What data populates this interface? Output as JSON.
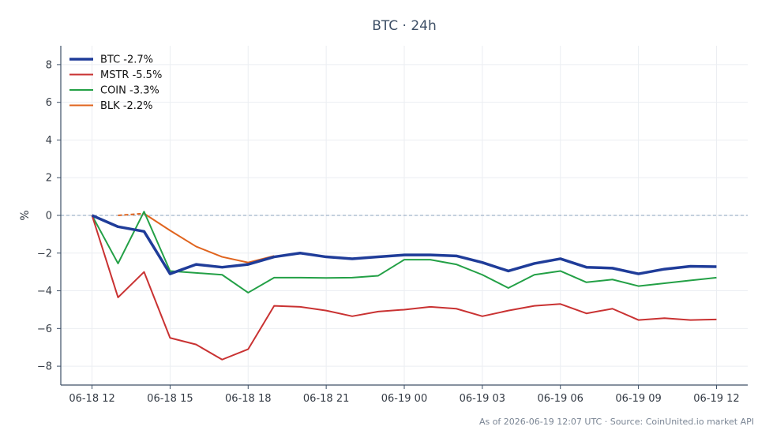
{
  "chart_data": {
    "type": "line",
    "title": "BTC · 24h",
    "ylabel": "%",
    "xlabel": "",
    "footer": "As of 2026-06-19 12:07 UTC · Source: CoinUnited.io market API",
    "ylim": [
      -9,
      9
    ],
    "yticks": [
      -8,
      -6,
      -4,
      -2,
      0,
      2,
      4,
      6,
      8
    ],
    "ytick_labels": [
      "−8",
      "−6",
      "−4",
      "−2",
      "0",
      "2",
      "4",
      "6",
      "8"
    ],
    "xlim": [
      -1.2,
      25.2
    ],
    "xticks": [
      0,
      3,
      6,
      9,
      12,
      15,
      18,
      21,
      24
    ],
    "xtick_labels": [
      "06-18 12",
      "06-18 15",
      "06-18 18",
      "06-18 21",
      "06-19 00",
      "06-19 03",
      "06-19 06",
      "06-19 09",
      "06-19 12"
    ],
    "grid": true,
    "legend_position": "top-left",
    "reference_line": {
      "y": 0,
      "style": "dashed",
      "color": "#8aa0bd"
    },
    "series": [
      {
        "name": "BTC -2.7%",
        "color": "#1f3c99",
        "width": 3.5,
        "x": [
          0,
          1,
          2,
          3,
          4,
          5,
          6,
          7,
          8,
          9,
          10,
          11,
          12,
          13,
          14,
          15,
          16,
          17,
          18,
          19,
          20,
          21,
          22,
          23,
          24
        ],
        "values": [
          0.0,
          -0.6,
          -0.85,
          -3.1,
          -2.6,
          -2.75,
          -2.6,
          -2.2,
          -2.0,
          -2.2,
          -2.3,
          -2.2,
          -2.1,
          -2.1,
          -2.15,
          -2.5,
          -2.95,
          -2.55,
          -2.3,
          -2.75,
          -2.8,
          -3.1,
          -2.85,
          -2.7,
          -2.72
        ]
      },
      {
        "name": "MSTR -5.5%",
        "color": "#c93232",
        "width": 2,
        "x": [
          0,
          1,
          2,
          3,
          4,
          5,
          6,
          7,
          8,
          9,
          10,
          11,
          12,
          13,
          14,
          15,
          16,
          17,
          18,
          19,
          20,
          21,
          22,
          23,
          24
        ],
        "values": [
          0.0,
          -4.35,
          -3.0,
          -6.5,
          -6.85,
          -7.65,
          -7.1,
          -4.8,
          -4.85,
          -5.05,
          -5.35,
          -5.1,
          -5.0,
          -4.85,
          -4.95,
          -5.35,
          -5.05,
          -4.8,
          -4.7,
          -5.2,
          -4.95,
          -5.55,
          -5.45,
          -5.55,
          -5.52
        ]
      },
      {
        "name": "COIN -3.3%",
        "color": "#23a046",
        "width": 2,
        "x": [
          0,
          1,
          2,
          3,
          4,
          5,
          6,
          7,
          8,
          9,
          10,
          11,
          12,
          13,
          14,
          15,
          16,
          17,
          18,
          19,
          20,
          21,
          22,
          23,
          24
        ],
        "values": [
          0.0,
          -2.55,
          0.2,
          -2.95,
          -3.05,
          -3.15,
          -4.1,
          -3.3,
          -3.3,
          -3.32,
          -3.3,
          -3.2,
          -2.35,
          -2.35,
          -2.6,
          -3.15,
          -3.85,
          -3.15,
          -2.95,
          -3.55,
          -3.4,
          -3.75,
          -3.6,
          -3.45,
          -3.3
        ]
      },
      {
        "name": "BLK -2.2%",
        "color": "#e0641e",
        "width": 2,
        "x": [
          1,
          2,
          3,
          4,
          5,
          6,
          7
        ],
        "values": [
          0.0,
          0.1,
          -0.8,
          -1.65,
          -2.2,
          -2.5,
          -2.15
        ],
        "dashed_until_index": 1
      }
    ]
  }
}
